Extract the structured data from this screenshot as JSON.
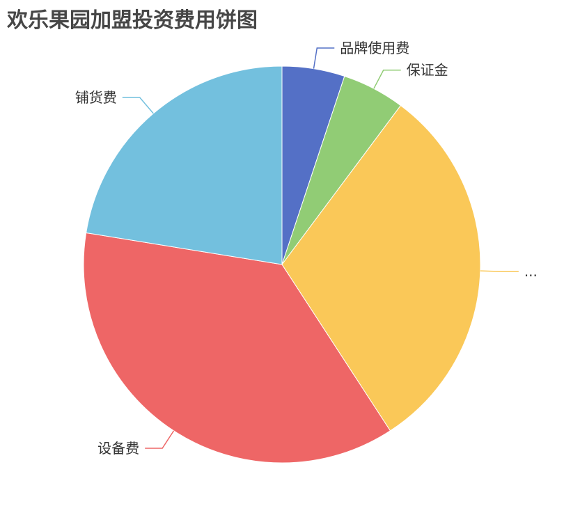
{
  "chart_data": {
    "type": "pie",
    "title": "欢乐果园加盟投资费用饼图",
    "categories": [
      "品牌使用费",
      "保证金",
      "...",
      "设备费",
      "铺货费"
    ],
    "values": [
      5,
      5,
      30,
      36,
      22
    ],
    "colors": [
      "#5470c6",
      "#91cc75",
      "#fac858",
      "#ee6666",
      "#73c0de"
    ],
    "legend": "none"
  }
}
